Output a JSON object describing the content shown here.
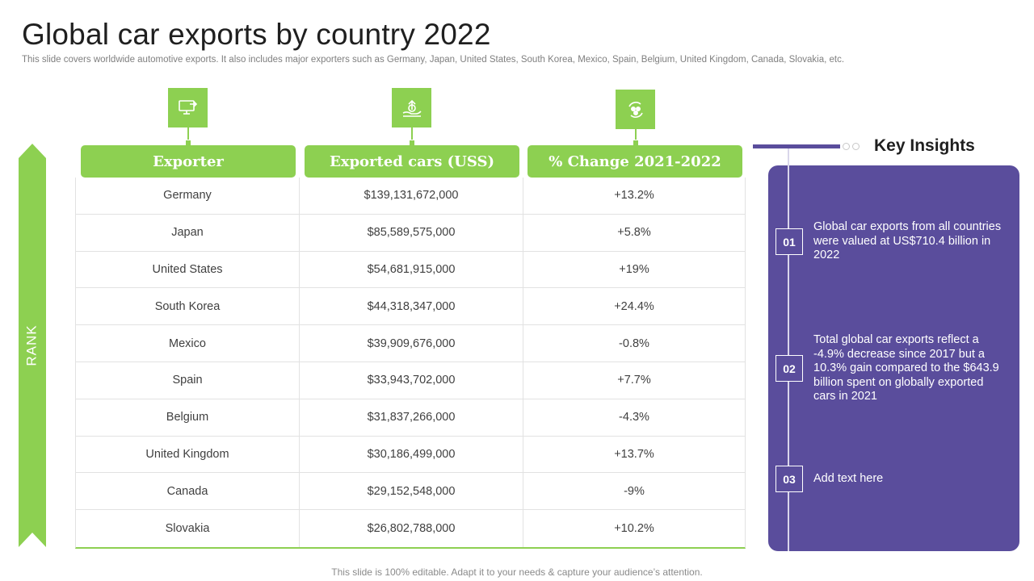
{
  "page": {
    "title": "Global car exports by country 2022",
    "subtitle": "This slide covers worldwide automotive exports. It also includes major exporters such as Germany, Japan, United States, South Korea, Mexico, Spain, Belgium, United Kingdom, Canada, Slovakia, etc.",
    "rank_label": "RANK",
    "footer": "This slide is 100% editable. Adapt it to your needs & capture your audience’s attention."
  },
  "colors": {
    "accent_green": "#8dd051",
    "accent_purple": "#5a4d9c"
  },
  "table": {
    "headers": [
      {
        "label": "Exporter",
        "icon": "monitor-export-icon"
      },
      {
        "label": "Exported cars (USS)",
        "icon": "hand-upload-icon"
      },
      {
        "label": "% Change 2021-2022",
        "icon": "cycle-people-icon"
      }
    ],
    "rows": [
      {
        "exporter": "Germany",
        "value": "$139,131,672,000",
        "change": "+13.2%"
      },
      {
        "exporter": "Japan",
        "value": "$85,589,575,000",
        "change": "+5.8%"
      },
      {
        "exporter": "United States",
        "value": "$54,681,915,000",
        "change": "+19%"
      },
      {
        "exporter": "South Korea",
        "value": "$44,318,347,000",
        "change": "+24.4%"
      },
      {
        "exporter": "Mexico",
        "value": "$39,909,676,000",
        "change": "-0.8%"
      },
      {
        "exporter": "Spain",
        "value": "$33,943,702,000",
        "change": "+7.7%"
      },
      {
        "exporter": "Belgium",
        "value": "$31,837,266,000",
        "change": "-4.3%"
      },
      {
        "exporter": "United Kingdom",
        "value": "$30,186,499,000",
        "change": "+13.7%"
      },
      {
        "exporter": "Canada",
        "value": "$29,152,548,000",
        "change": "-9%"
      },
      {
        "exporter": "Slovakia",
        "value": "$26,802,788,000",
        "change": "+10.2%"
      }
    ]
  },
  "insights": {
    "title": "Key Insights",
    "items": [
      {
        "num": "01",
        "text": "Global car exports from all countries were valued at US$710.4 billion in 2022"
      },
      {
        "num": "02",
        "text": "Total global car exports reflect a -4.9% decrease since 2017 but a 10.3% gain compared to the $643.9 billion spent on globally exported cars in 2021"
      },
      {
        "num": "03",
        "text": "Add text here"
      }
    ]
  }
}
